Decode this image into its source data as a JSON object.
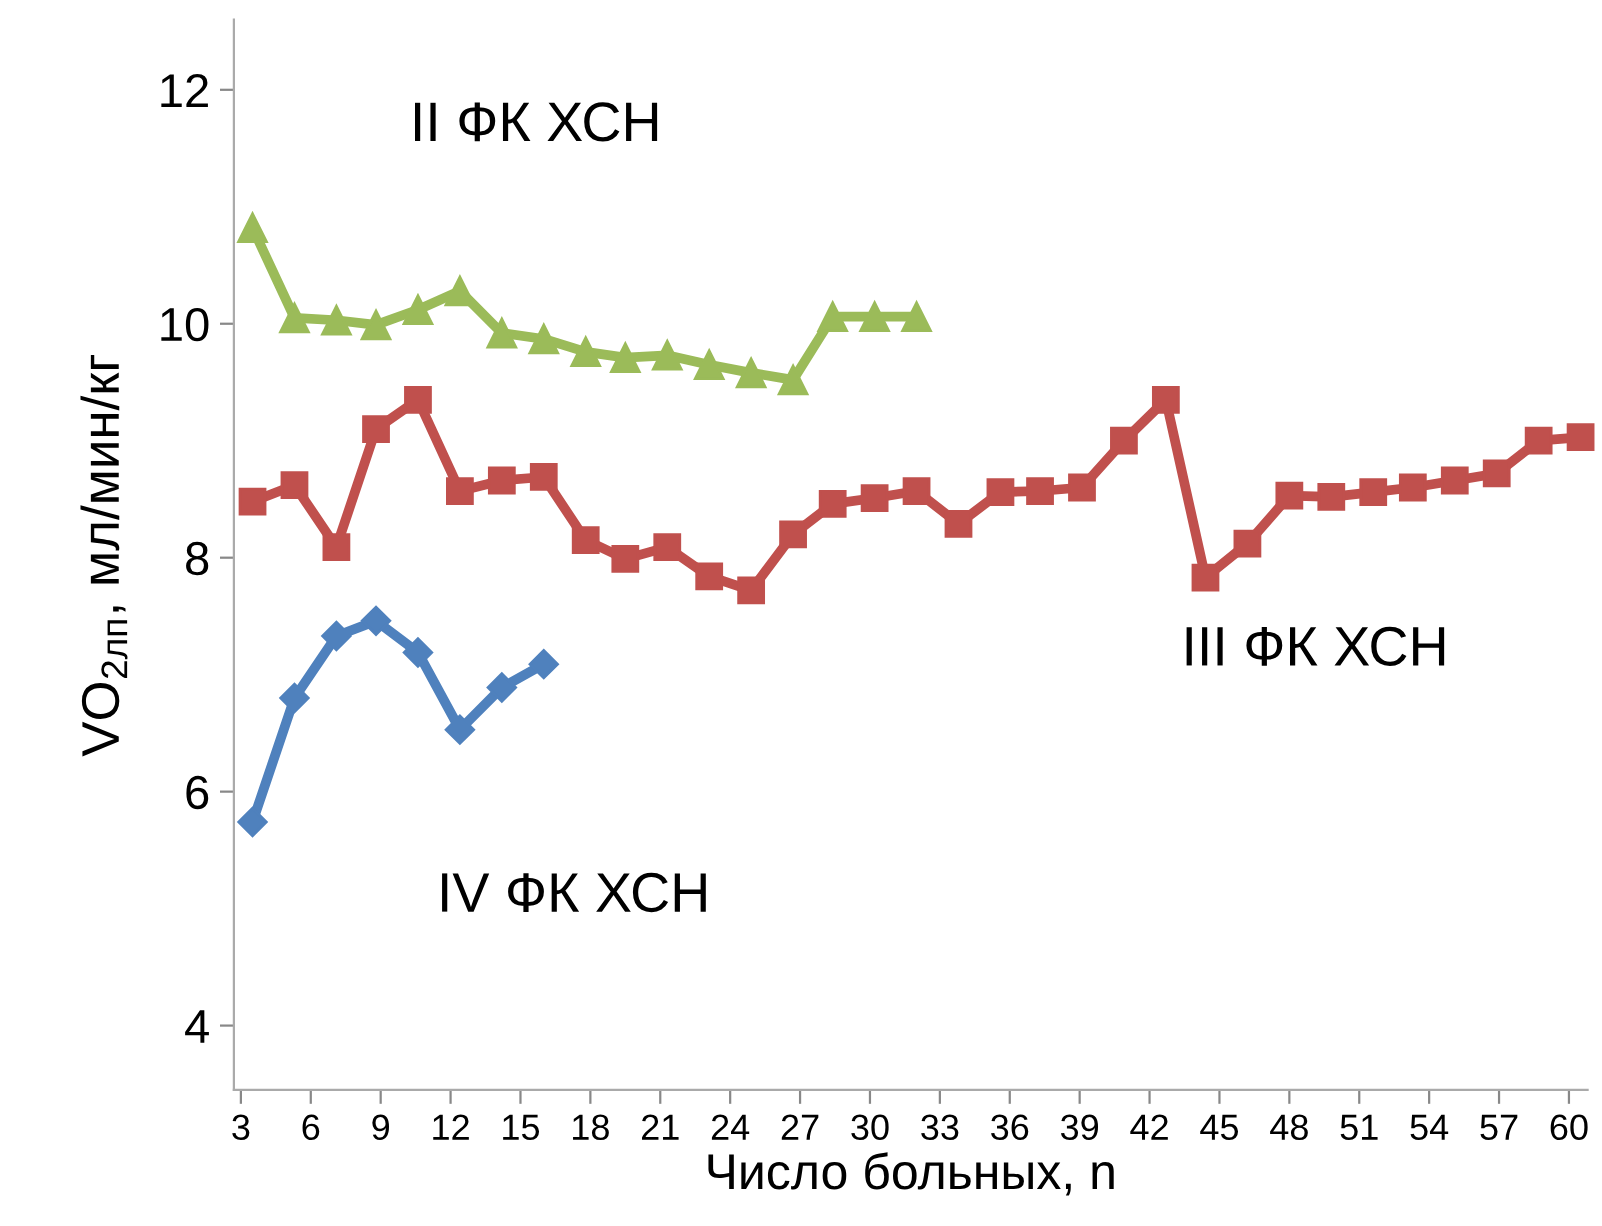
{
  "chart_data": {
    "type": "line",
    "xlabel": "Число больных, n",
    "ylabel": "VO$_{2лп}$, мл/мин/кг",
    "xlim": [
      2.7,
      60.8
    ],
    "xticks": [
      3,
      6,
      9,
      12,
      15,
      18,
      21,
      24,
      27,
      30,
      33,
      36,
      39,
      42,
      45,
      48,
      51,
      54,
      57,
      60
    ],
    "ylim": [
      3.45,
      12.6
    ],
    "yticks": [
      4,
      6,
      8,
      10,
      12
    ],
    "grid": false,
    "legend": false,
    "series": [
      {
        "name": "II ФК ХСН",
        "color": "#9bbb59",
        "marker": "triangle",
        "x": [
          3.5,
          5.3,
          7.1,
          8.8,
          10.6,
          12.4,
          14.2,
          16.0,
          17.8,
          19.5,
          21.3,
          23.1,
          24.9,
          26.7,
          28.4,
          30.2,
          32.0
        ],
        "values": [
          10.82,
          10.05,
          10.03,
          9.99,
          10.12,
          10.28,
          9.92,
          9.87,
          9.76,
          9.71,
          9.73,
          9.65,
          9.58,
          9.52,
          10.06,
          10.06,
          10.06
        ]
      },
      {
        "name": "III ФК ХСН",
        "color": "#c0504d",
        "marker": "square",
        "x": [
          3.5,
          5.3,
          7.1,
          8.8,
          10.6,
          12.4,
          14.2,
          16.0,
          17.8,
          19.5,
          21.3,
          23.1,
          24.9,
          26.7,
          28.4,
          30.2,
          32.0,
          33.8,
          35.6,
          37.3,
          39.1,
          40.9,
          42.7,
          44.4,
          46.2,
          48.0,
          49.8,
          51.6,
          53.3,
          55.1,
          56.9,
          58.7,
          60.5
        ],
        "values": [
          8.48,
          8.62,
          8.09,
          9.1,
          9.35,
          8.57,
          8.66,
          8.69,
          8.15,
          7.99,
          8.09,
          7.84,
          7.72,
          8.2,
          8.46,
          8.51,
          8.57,
          8.29,
          8.56,
          8.57,
          8.6,
          9.0,
          9.35,
          7.83,
          8.12,
          8.53,
          8.52,
          8.56,
          8.6,
          8.66,
          8.72,
          9.0,
          9.03
        ]
      },
      {
        "name": "IV ФК ХСН",
        "color": "#4f81bd",
        "marker": "diamond",
        "x": [
          3.5,
          5.3,
          7.1,
          8.8,
          10.6,
          12.4,
          14.2,
          16.0
        ],
        "values": [
          5.74,
          6.8,
          7.33,
          7.46,
          7.19,
          6.53,
          6.89,
          7.09
        ]
      }
    ]
  }
}
